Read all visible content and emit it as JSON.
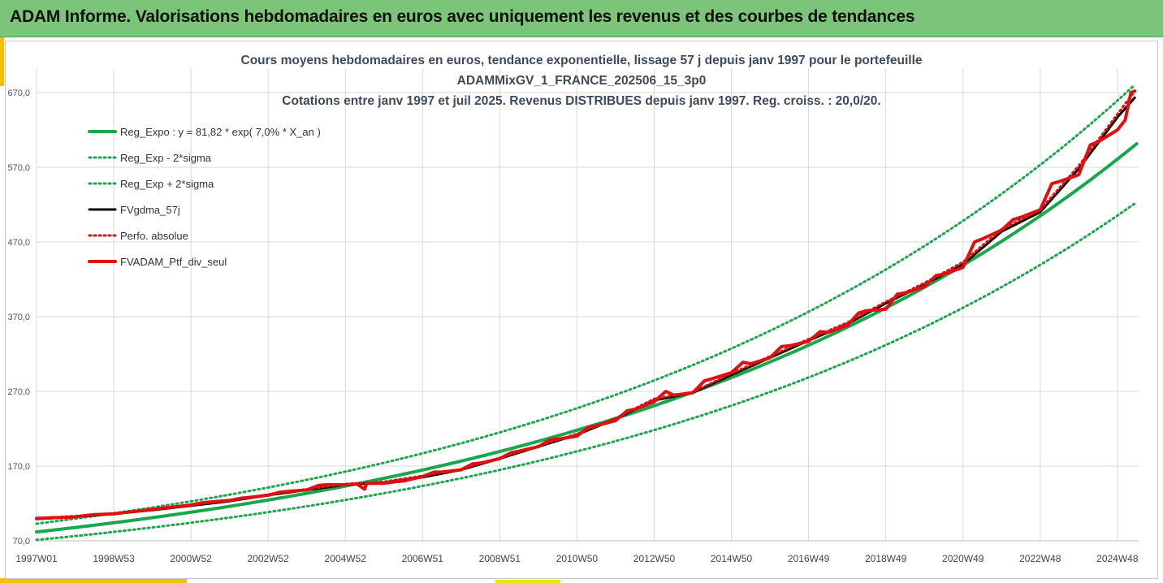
{
  "header": {
    "title": "ADAM Informe. Valorisations hebdomadaires en euros avec uniquement les revenus et des courbes de tendances"
  },
  "chart_data": {
    "type": "line",
    "title_lines": [
      "Cours moyens hebdomadaires  en euros, tendance exponentielle, lissage 57 j depuis janv 1997 pour le portefeuille",
      "ADAMMixGV_1_FRANCE_202506_15_3p0",
      "Cotations  entre janv 1997 et juil 2025. Revenus DISTRIBUES depuis janv 1997. Reg. croiss. : 20,0/20."
    ],
    "y_ticks": [
      "70,0",
      "170,0",
      "270,0",
      "370,0",
      "470,0",
      "570,0",
      "670,0"
    ],
    "y_tick_values": [
      70,
      170,
      270,
      370,
      470,
      570,
      670
    ],
    "ylim": [
      70,
      670
    ],
    "x_ticks": [
      "1997W01",
      "1998W53",
      "2000W52",
      "2002W52",
      "2004W52",
      "2006W51",
      "2008W51",
      "2010W50",
      "2012W50",
      "2014W50",
      "2016W49",
      "2018W49",
      "2020W49",
      "2022W48",
      "2024W48"
    ],
    "x_tick_years": [
      1997.0,
      1999.0,
      2001.0,
      2003.0,
      2005.0,
      2007.0,
      2009.0,
      2011.0,
      2013.0,
      2015.0,
      2017.0,
      2019.0,
      2021.0,
      2023.0,
      2025.0
    ],
    "xlim": [
      1997.0,
      2025.55
    ],
    "grid": true,
    "legend_position": "top-left",
    "series": [
      {
        "name": "Reg_Expo : y = 81,82 * exp( 7,0% *  X_an )",
        "color": "#1aa64a",
        "style": "solid",
        "width": 4,
        "formula": {
          "a": 81.82,
          "rate": 0.07,
          "factor": 1.0
        }
      },
      {
        "name": "Reg_Exp - 2*sigma",
        "color": "#1aa64a",
        "style": "dotted",
        "width": 3,
        "formula": {
          "a": 81.82,
          "rate": 0.07,
          "factor": 0.87
        }
      },
      {
        "name": "Reg_Exp + 2*sigma",
        "color": "#1aa64a",
        "style": "dotted",
        "width": 3,
        "formula": {
          "a": 81.82,
          "rate": 0.07,
          "factor": 1.135
        }
      },
      {
        "name": "FVgdma_57j",
        "color": "#000000",
        "style": "solid",
        "width": 3,
        "x": [
          1997.0,
          1998.0,
          1999.0,
          2000.0,
          2001.0,
          2002.0,
          2003.0,
          2004.0,
          2005.0,
          2006.0,
          2007.0,
          2008.0,
          2009.0,
          2010.0,
          2011.0,
          2012.0,
          2013.0,
          2014.0,
          2015.0,
          2016.0,
          2017.0,
          2018.0,
          2019.0,
          2020.0,
          2021.0,
          2022.0,
          2023.0,
          2024.0,
          2025.0,
          2025.45
        ],
        "y": [
          99,
          102,
          106,
          111,
          117,
          123,
          131,
          138,
          145,
          148,
          155,
          165,
          180,
          196,
          212,
          233,
          258,
          268,
          292,
          315,
          338,
          360,
          388,
          413,
          440,
          484,
          510,
          568,
          637,
          663
        ]
      },
      {
        "name": "Perfo. absolue",
        "color": "#e01010",
        "style": "dotted",
        "width": 3,
        "x": [
          1997.0,
          1998.0,
          1999.0,
          2000.0,
          2001.0,
          2002.0,
          2003.0,
          2004.0,
          2005.0,
          2006.0,
          2007.0,
          2008.0,
          2009.0,
          2010.0,
          2011.0,
          2012.0,
          2013.0,
          2014.0,
          2015.0,
          2016.0,
          2017.0,
          2018.0,
          2019.0,
          2020.0,
          2021.0,
          2022.0,
          2023.0,
          2024.0,
          2025.0,
          2025.45
        ],
        "y": [
          100,
          103,
          107,
          112,
          118,
          124,
          132,
          139,
          146,
          149,
          157,
          166,
          181,
          197,
          213,
          234,
          260,
          269,
          294,
          317,
          340,
          362,
          390,
          415,
          443,
          487,
          513,
          572,
          641,
          672
        ]
      },
      {
        "name": "FVADAM_Ptf_div_seul",
        "color": "#e01010",
        "style": "solid",
        "width": 4,
        "x": [
          1997.0,
          1997.5,
          1998.0,
          1998.3,
          1998.5,
          1999.0,
          1999.3,
          1999.5,
          2000.0,
          2000.3,
          2000.5,
          2001.0,
          2001.3,
          2001.5,
          2002.0,
          2002.3,
          2002.5,
          2003.0,
          2003.3,
          2003.5,
          2004.0,
          2004.3,
          2004.5,
          2005.0,
          2005.3,
          2005.5,
          2005.55,
          2006.0,
          2006.3,
          2006.5,
          2007.0,
          2007.3,
          2007.5,
          2008.0,
          2008.3,
          2008.5,
          2009.0,
          2009.3,
          2009.5,
          2010.0,
          2010.3,
          2010.5,
          2011.0,
          2011.3,
          2011.5,
          2012.0,
          2012.3,
          2012.5,
          2013.0,
          2013.3,
          2013.5,
          2014.0,
          2014.3,
          2014.5,
          2015.0,
          2015.3,
          2015.5,
          2016.0,
          2016.3,
          2016.5,
          2017.0,
          2017.3,
          2017.5,
          2018.0,
          2018.3,
          2018.5,
          2019.0,
          2019.3,
          2019.5,
          2020.0,
          2020.3,
          2020.5,
          2021.0,
          2021.3,
          2021.5,
          2022.0,
          2022.3,
          2022.5,
          2023.0,
          2023.3,
          2023.5,
          2024.0,
          2024.3,
          2024.5,
          2025.0,
          2025.2,
          2025.35,
          2025.45
        ],
        "y": [
          100,
          101,
          102,
          104,
          105,
          106,
          108,
          109,
          112,
          114,
          115,
          118,
          121,
          122,
          124,
          127,
          128,
          131,
          135,
          136,
          138,
          144,
          145,
          145,
          146,
          139,
          147,
          147,
          149,
          150,
          156,
          162,
          162,
          165,
          173,
          174,
          180,
          188,
          190,
          196,
          205,
          206,
          210,
          222,
          224,
          231,
          244,
          246,
          256,
          270,
          265,
          268,
          284,
          287,
          295,
          309,
          307,
          315,
          330,
          331,
          337,
          350,
          349,
          358,
          375,
          378,
          380,
          400,
          402,
          410,
          425,
          427,
          436,
          470,
          474,
          486,
          500,
          503,
          513,
          548,
          551,
          560,
          600,
          604,
          620,
          633,
          670,
          672
        ]
      }
    ]
  }
}
